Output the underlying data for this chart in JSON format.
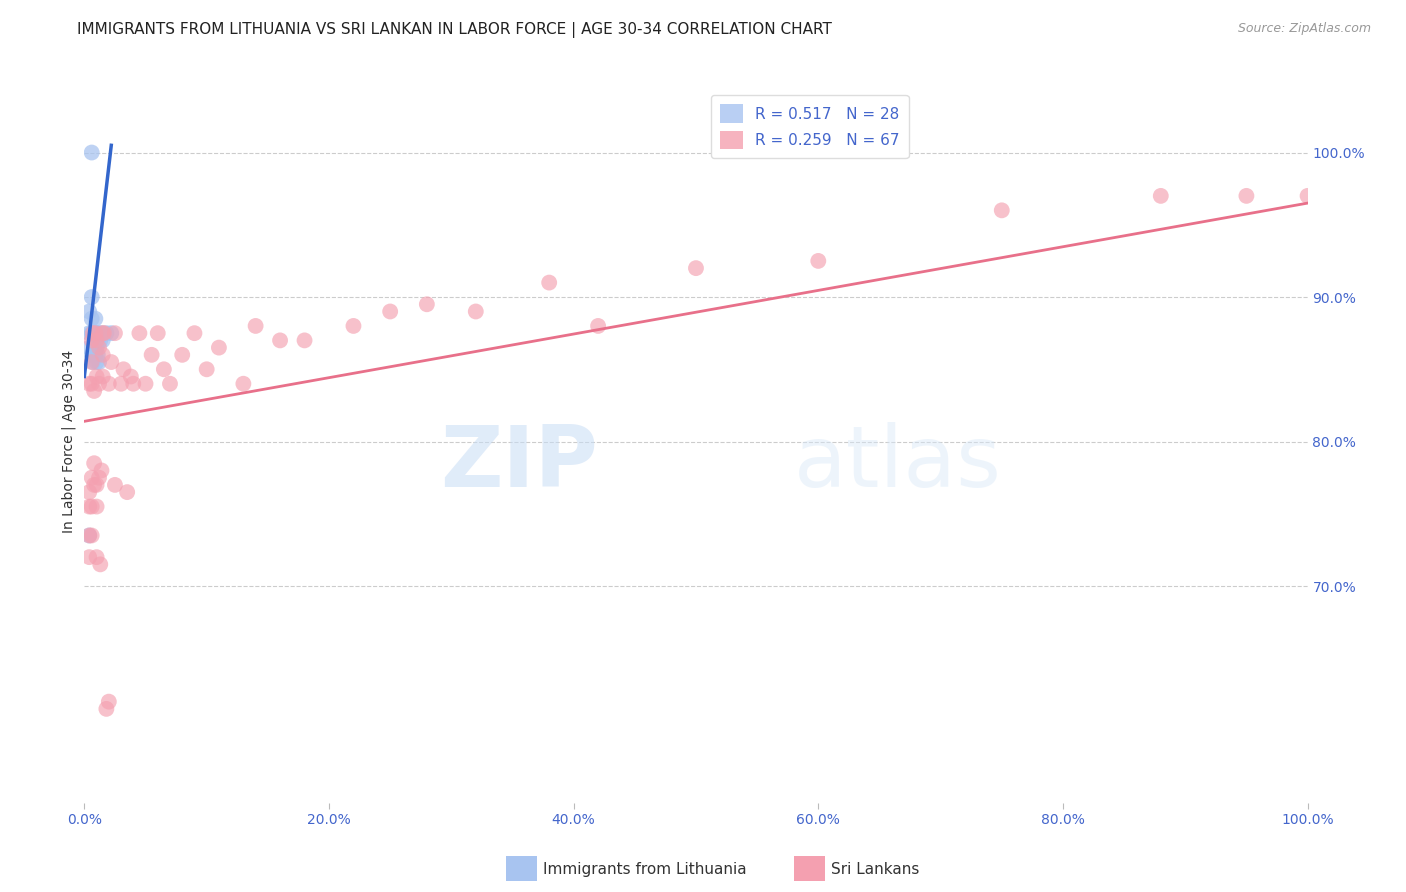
{
  "title": "IMMIGRANTS FROM LITHUANIA VS SRI LANKAN IN LABOR FORCE | AGE 30-34 CORRELATION CHART",
  "source": "Source: ZipAtlas.com",
  "ylabel": "In Labor Force | Age 30-34",
  "xlim": [
    0.0,
    1.0
  ],
  "ylim": [
    0.55,
    1.05
  ],
  "xtick_vals": [
    0.0,
    0.2,
    0.4,
    0.6,
    0.8,
    1.0
  ],
  "xtick_labels": [
    "0.0%",
    "20.0%",
    "40.0%",
    "60.0%",
    "80.0%",
    "100.0%"
  ],
  "ytick_right_vals": [
    0.7,
    0.8,
    0.9,
    1.0
  ],
  "ytick_right_labels": [
    "70.0%",
    "80.0%",
    "90.0%",
    "100.0%"
  ],
  "legend_r1": "R = 0.517",
  "legend_n1": "N = 28",
  "legend_r2": "R = 0.259",
  "legend_n2": "N = 67",
  "color_blue": "#a8c4f0",
  "color_pink": "#f4a0b0",
  "color_blue_line": "#3366cc",
  "color_pink_line": "#e8708a",
  "color_axis": "#4466cc",
  "watermark_color": "#ddeeff",
  "grid_color": "#cccccc",
  "background_color": "#ffffff",
  "title_fontsize": 11,
  "axis_fontsize": 10,
  "scatter_blue_x": [
    0.004,
    0.004,
    0.004,
    0.004,
    0.006,
    0.006,
    0.006,
    0.006,
    0.006,
    0.007,
    0.007,
    0.008,
    0.008,
    0.009,
    0.009,
    0.009,
    0.01,
    0.01,
    0.01,
    0.011,
    0.011,
    0.012,
    0.012,
    0.013,
    0.014,
    0.015,
    0.018,
    0.022
  ],
  "scatter_blue_y": [
    0.735,
    0.865,
    0.875,
    0.89,
    0.86,
    0.875,
    0.885,
    0.9,
    1.0,
    0.855,
    0.875,
    0.86,
    0.875,
    0.86,
    0.875,
    0.885,
    0.855,
    0.865,
    0.875,
    0.86,
    0.87,
    0.855,
    0.875,
    0.87,
    0.875,
    0.87,
    0.875,
    0.875
  ],
  "scatter_pink_x": [
    0.004,
    0.004,
    0.004,
    0.004,
    0.004,
    0.006,
    0.006,
    0.006,
    0.006,
    0.006,
    0.006,
    0.007,
    0.008,
    0.008,
    0.008,
    0.009,
    0.01,
    0.01,
    0.01,
    0.01,
    0.01,
    0.012,
    0.012,
    0.012,
    0.013,
    0.014,
    0.015,
    0.015,
    0.015,
    0.016,
    0.018,
    0.02,
    0.02,
    0.022,
    0.025,
    0.025,
    0.03,
    0.032,
    0.035,
    0.038,
    0.04,
    0.045,
    0.05,
    0.055,
    0.06,
    0.065,
    0.07,
    0.08,
    0.09,
    0.1,
    0.11,
    0.13,
    0.14,
    0.16,
    0.18,
    0.22,
    0.25,
    0.28,
    0.32,
    0.38,
    0.42,
    0.5,
    0.6,
    0.75,
    0.88,
    0.95,
    1.0
  ],
  "scatter_pink_y": [
    0.72,
    0.735,
    0.755,
    0.765,
    0.84,
    0.735,
    0.755,
    0.775,
    0.84,
    0.855,
    0.87,
    0.875,
    0.77,
    0.785,
    0.835,
    0.875,
    0.72,
    0.755,
    0.77,
    0.845,
    0.87,
    0.775,
    0.84,
    0.865,
    0.715,
    0.78,
    0.845,
    0.86,
    0.875,
    0.875,
    0.615,
    0.62,
    0.84,
    0.855,
    0.77,
    0.875,
    0.84,
    0.85,
    0.765,
    0.845,
    0.84,
    0.875,
    0.84,
    0.86,
    0.875,
    0.85,
    0.84,
    0.86,
    0.875,
    0.85,
    0.865,
    0.84,
    0.88,
    0.87,
    0.87,
    0.88,
    0.89,
    0.895,
    0.89,
    0.91,
    0.88,
    0.92,
    0.925,
    0.96,
    0.97,
    0.97,
    0.97
  ],
  "blue_line_x": [
    0.0,
    0.022
  ],
  "blue_line_y": [
    0.845,
    1.005
  ],
  "pink_line_x": [
    0.0,
    1.0
  ],
  "pink_line_y": [
    0.814,
    0.965
  ]
}
